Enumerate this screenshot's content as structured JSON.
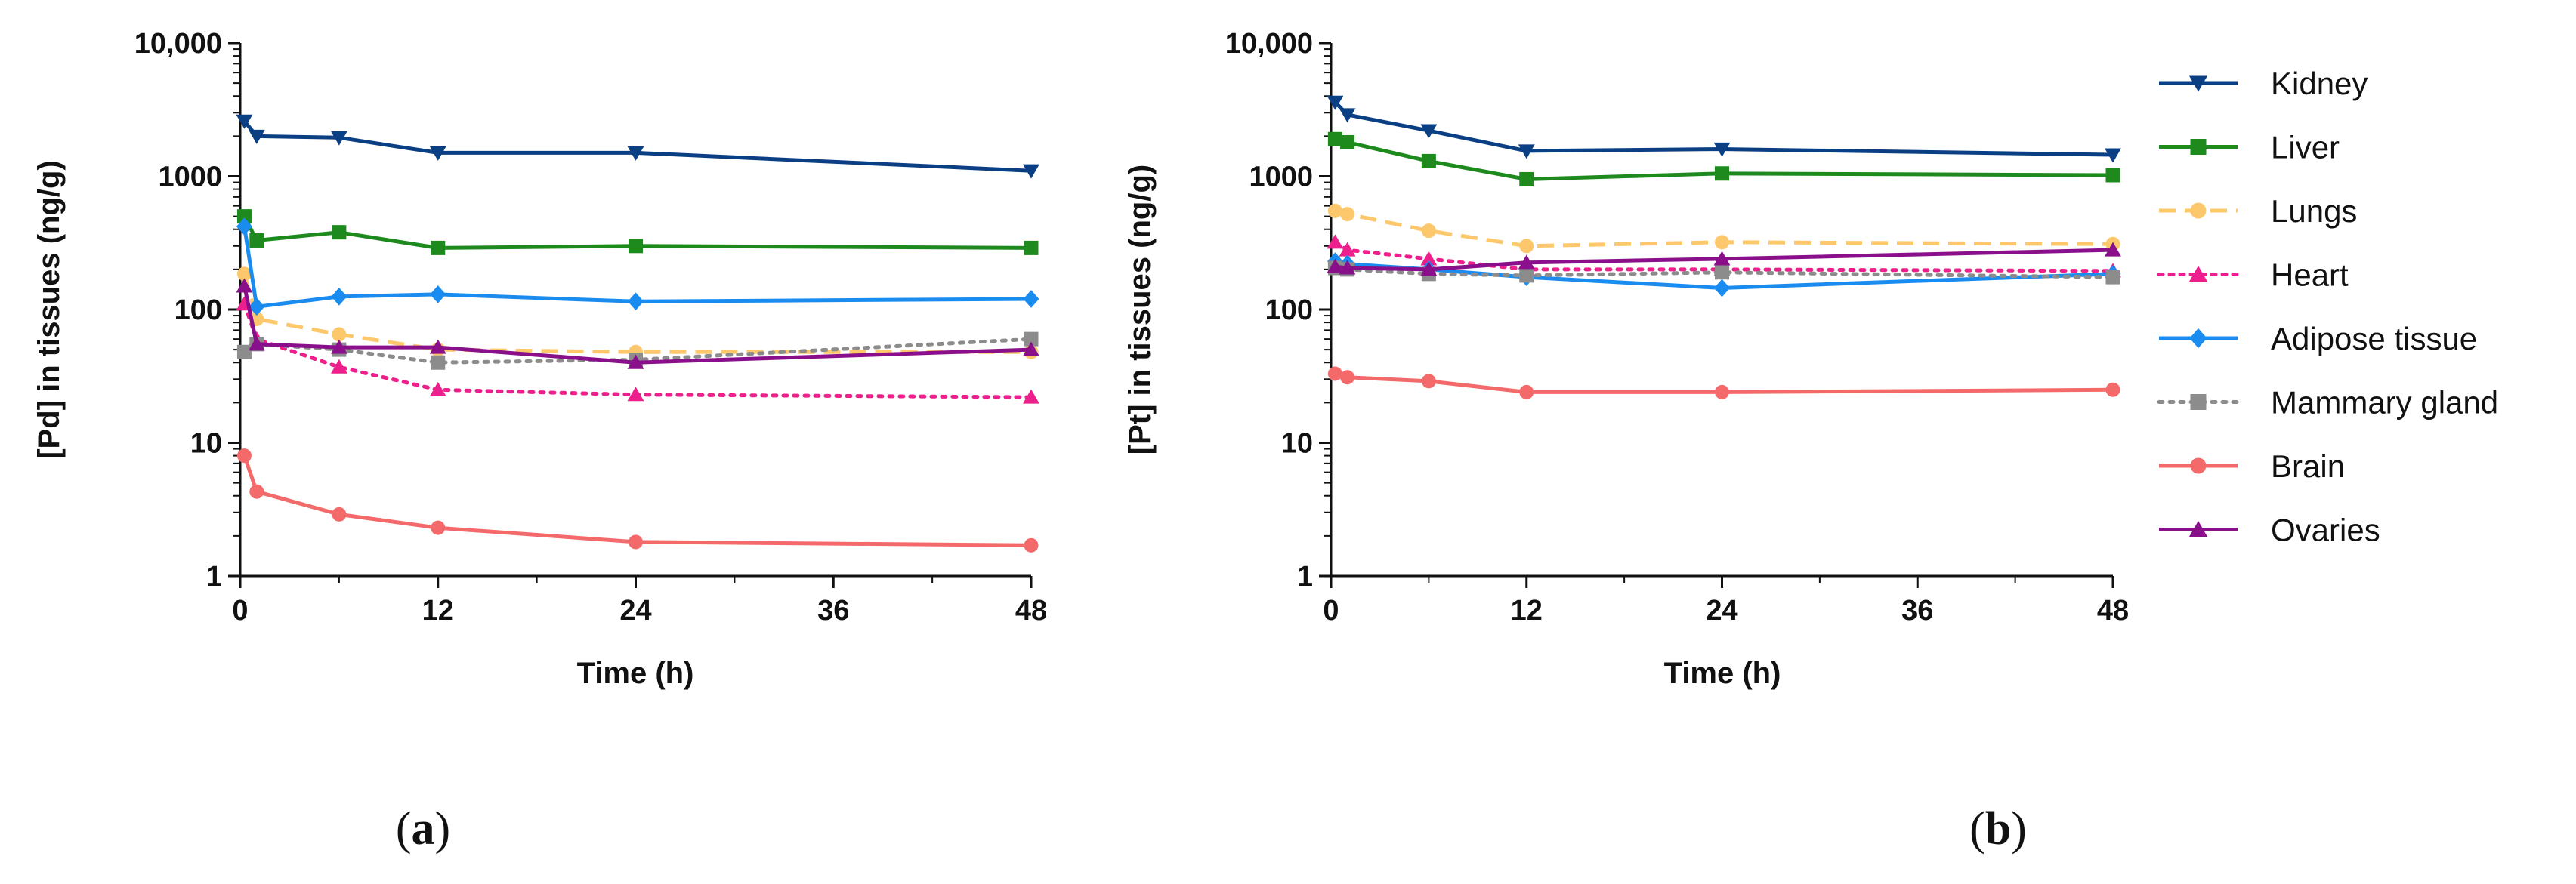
{
  "chart_data": [
    {
      "type": "line",
      "panel_label": "a",
      "xlabel": "Time (h)",
      "ylabel": "[Pd] in tissues (ng/g)",
      "yscale": "log",
      "ylim": [
        1,
        10000
      ],
      "xlim": [
        0,
        48
      ],
      "xticks": [
        "0",
        "12",
        "24",
        "36",
        "48"
      ],
      "yticks": [
        "1",
        "10",
        "100",
        "1000",
        "10,000"
      ],
      "series": [
        {
          "name": "Kidney",
          "x": [
            0.25,
            1,
            6,
            12,
            24,
            48
          ],
          "values": [
            2600,
            2000,
            1950,
            1500,
            1500,
            1100
          ]
        },
        {
          "name": "Liver",
          "x": [
            0.25,
            1,
            6,
            12,
            24,
            48
          ],
          "values": [
            500,
            330,
            380,
            290,
            300,
            290
          ]
        },
        {
          "name": "Lungs",
          "x": [
            0.25,
            1,
            6,
            12,
            24,
            48
          ],
          "values": [
            185,
            85,
            65,
            50,
            48,
            48
          ]
        },
        {
          "name": "Heart",
          "x": [
            0.25,
            1,
            6,
            12,
            24,
            48
          ],
          "values": [
            110,
            60,
            37,
            25,
            23,
            22
          ]
        },
        {
          "name": "Adipose tissue",
          "x": [
            0.25,
            1,
            6,
            12,
            24,
            48
          ],
          "values": [
            420,
            105,
            125,
            130,
            115,
            120
          ]
        },
        {
          "name": "Mammary gland",
          "x": [
            0.25,
            1,
            6,
            12,
            24,
            48
          ],
          "values": [
            48,
            55,
            50,
            40,
            42,
            60
          ]
        },
        {
          "name": "Brain",
          "x": [
            0.25,
            1,
            6,
            12,
            24,
            48
          ],
          "values": [
            8,
            4.3,
            2.9,
            2.3,
            1.8,
            1.7
          ]
        },
        {
          "name": "Ovaries",
          "x": [
            0.25,
            1,
            6,
            12,
            24,
            48
          ],
          "values": [
            150,
            55,
            52,
            52,
            40,
            50
          ]
        }
      ]
    },
    {
      "type": "line",
      "panel_label": "b",
      "xlabel": "Time (h)",
      "ylabel": "[Pt] in tissues (ng/g)",
      "yscale": "log",
      "ylim": [
        1,
        10000
      ],
      "xlim": [
        0,
        48
      ],
      "xticks": [
        "0",
        "12",
        "24",
        "36",
        "48"
      ],
      "yticks": [
        "1",
        "10",
        "100",
        "1000",
        "10,000"
      ],
      "series": [
        {
          "name": "Kidney",
          "x": [
            0.25,
            1,
            6,
            12,
            24,
            48
          ],
          "values": [
            3600,
            2900,
            2200,
            1550,
            1600,
            1450
          ]
        },
        {
          "name": "Liver",
          "x": [
            0.25,
            1,
            6,
            12,
            24,
            48
          ],
          "values": [
            1900,
            1800,
            1300,
            950,
            1050,
            1020
          ]
        },
        {
          "name": "Lungs",
          "x": [
            0.25,
            1,
            6,
            12,
            24,
            48
          ],
          "values": [
            550,
            520,
            390,
            300,
            320,
            310
          ]
        },
        {
          "name": "Heart",
          "x": [
            0.25,
            1,
            6,
            12,
            24,
            48
          ],
          "values": [
            320,
            280,
            240,
            200,
            200,
            195
          ]
        },
        {
          "name": "Adipose tissue",
          "x": [
            0.25,
            1,
            6,
            12,
            24,
            48
          ],
          "values": [
            230,
            220,
            200,
            175,
            145,
            185
          ]
        },
        {
          "name": "Mammary gland",
          "x": [
            0.25,
            1,
            6,
            12,
            24,
            48
          ],
          "values": [
            205,
            200,
            185,
            180,
            190,
            175
          ]
        },
        {
          "name": "Brain",
          "x": [
            0.25,
            1,
            6,
            12,
            24,
            48
          ],
          "values": [
            33,
            31,
            29,
            24,
            24,
            25
          ]
        },
        {
          "name": "Ovaries",
          "x": [
            0.25,
            1,
            6,
            12,
            24,
            48
          ],
          "values": [
            210,
            205,
            200,
            225,
            240,
            280
          ]
        }
      ]
    }
  ],
  "legend": [
    {
      "name": "Kidney",
      "color": "#0b3f84",
      "marker": "triangle-down",
      "dash": "solid"
    },
    {
      "name": "Liver",
      "color": "#1e8a1e",
      "marker": "square",
      "dash": "solid"
    },
    {
      "name": "Lungs",
      "color": "#fcc86b",
      "marker": "circle",
      "dash": "dashed"
    },
    {
      "name": "Heart",
      "color": "#ec1f8c",
      "marker": "triangle-up",
      "dash": "dotted"
    },
    {
      "name": "Adipose tissue",
      "color": "#1a8cf0",
      "marker": "diamond",
      "dash": "solid"
    },
    {
      "name": "Mammary gland",
      "color": "#8c8c8c",
      "marker": "square",
      "dash": "dotted"
    },
    {
      "name": "Brain",
      "color": "#f46a6a",
      "marker": "circle",
      "dash": "solid"
    },
    {
      "name": "Ovaries",
      "color": "#8a0f8a",
      "marker": "triangle-up",
      "dash": "solid"
    }
  ],
  "panel_labels": {
    "a": {
      "open": "(",
      "letter": "a",
      "close": ")"
    },
    "b": {
      "open": "(",
      "letter": "b",
      "close": ")"
    }
  }
}
